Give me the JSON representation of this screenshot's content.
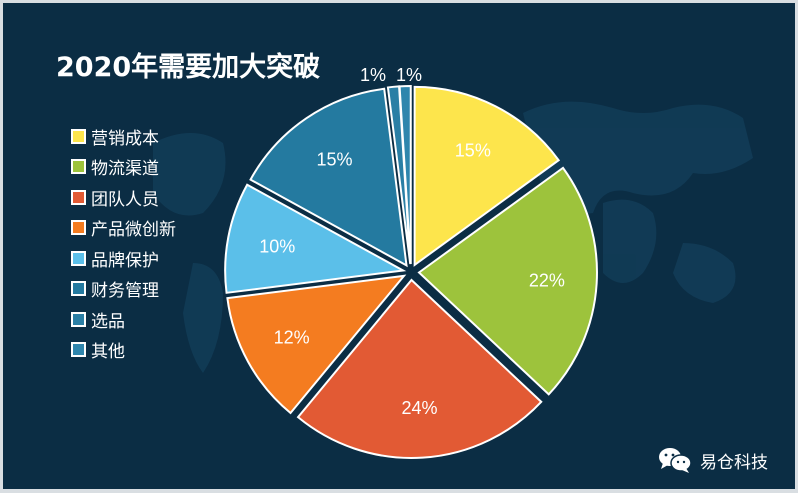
{
  "chart_data": {
    "type": "pie",
    "title": "2020年需要加大突破",
    "legend_position": "left",
    "slices": [
      {
        "label": "营销成本",
        "value": 15,
        "text": "15%",
        "color": "#fde54c"
      },
      {
        "label": "物流渠道",
        "value": 22,
        "text": "22%",
        "color": "#9dc33c"
      },
      {
        "label": "团队人员",
        "value": 24,
        "text": "24%",
        "color": "#e25a34"
      },
      {
        "label": "产品微创新",
        "value": 12,
        "text": "12%",
        "color": "#f47c20"
      },
      {
        "label": "品牌保护",
        "value": 10,
        "text": "10%",
        "color": "#5bbfe9"
      },
      {
        "label": "财务管理",
        "value": 15,
        "text": "15%",
        "color": "#247aa0"
      },
      {
        "label": "选品",
        "value": 1,
        "text": "1%",
        "color": "#2a7fa5"
      },
      {
        "label": "其他",
        "value": 1,
        "text": "1%",
        "color": "#2f86ad"
      }
    ]
  },
  "watermark": {
    "text": "易仓科技",
    "icon": "wechat-icon"
  }
}
